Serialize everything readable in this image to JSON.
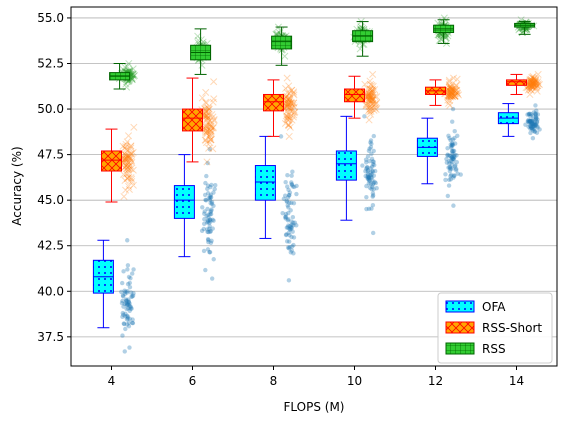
{
  "chart_data": {
    "type": "box",
    "title": "",
    "xlabel": "FLOPS (M)",
    "ylabel": "Accuracy (%)",
    "x_ticks": [
      4,
      6,
      8,
      10,
      12,
      14
    ],
    "y_ticks": [
      "37.5",
      "40.0",
      "42.5",
      "45.0",
      "47.5",
      "50.0",
      "52.5",
      "55.0"
    ],
    "xlim": [
      3,
      15
    ],
    "ylim": [
      35.9,
      55.6
    ],
    "grid": "horizontal",
    "legend_position": "lower-right",
    "series": [
      {
        "name": "OFA",
        "color": "#00ffff",
        "edge_color": "#0000ff",
        "hatch": "dots",
        "scatter_color": "#1f77b4",
        "boxes": [
          {
            "x": 3.8,
            "whisker_low": 38.0,
            "q1": 39.9,
            "median": 40.8,
            "q3": 41.7,
            "whisker_high": 42.8
          },
          {
            "x": 5.8,
            "whisker_low": 41.9,
            "q1": 44.0,
            "median": 45.0,
            "q3": 45.8,
            "whisker_high": 47.5
          },
          {
            "x": 7.8,
            "whisker_low": 42.9,
            "q1": 45.0,
            "median": 46.0,
            "q3": 46.9,
            "whisker_high": 48.5
          },
          {
            "x": 9.8,
            "whisker_low": 43.9,
            "q1": 46.1,
            "median": 47.0,
            "q3": 47.7,
            "whisker_high": 49.6
          },
          {
            "x": 11.8,
            "whisker_low": 45.9,
            "q1": 47.4,
            "median": 47.9,
            "q3": 48.4,
            "whisker_high": 49.5
          },
          {
            "x": 13.8,
            "whisker_low": 48.5,
            "q1": 49.2,
            "median": 49.5,
            "q3": 49.8,
            "whisker_high": 50.3
          }
        ],
        "scatter": [
          {
            "x": 4.4,
            "low": 36.7,
            "high": 42.8
          },
          {
            "x": 6.4,
            "low": 40.7,
            "high": 47.8
          },
          {
            "x": 8.4,
            "low": 40.6,
            "high": 48.5
          },
          {
            "x": 10.4,
            "low": 43.2,
            "high": 49.6
          },
          {
            "x": 12.4,
            "low": 44.7,
            "high": 50.0
          },
          {
            "x": 14.4,
            "low": 48.4,
            "high": 50.2
          }
        ]
      },
      {
        "name": "RSS-Short",
        "color": "#ffa500",
        "edge_color": "#ff0000",
        "hatch": "cross",
        "scatter_color": "#ff7f0e",
        "boxes": [
          {
            "x": 4.0,
            "whisker_low": 44.9,
            "q1": 46.6,
            "median": 47.2,
            "q3": 47.7,
            "whisker_high": 48.9
          },
          {
            "x": 6.0,
            "whisker_low": 47.1,
            "q1": 48.8,
            "median": 49.5,
            "q3": 50.0,
            "whisker_high": 51.7
          },
          {
            "x": 8.0,
            "whisker_low": 48.5,
            "q1": 49.9,
            "median": 50.4,
            "q3": 50.8,
            "whisker_high": 51.6
          },
          {
            "x": 10.0,
            "whisker_low": 49.5,
            "q1": 50.4,
            "median": 50.8,
            "q3": 51.1,
            "whisker_high": 51.8
          },
          {
            "x": 12.0,
            "whisker_low": 50.2,
            "q1": 50.8,
            "median": 51.0,
            "q3": 51.2,
            "whisker_high": 51.6
          },
          {
            "x": 14.0,
            "whisker_low": 50.8,
            "q1": 51.3,
            "median": 51.5,
            "q3": 51.6,
            "whisker_high": 51.9
          }
        ],
        "scatter": [
          {
            "x": 4.4,
            "low": 45.2,
            "high": 49.0
          },
          {
            "x": 6.4,
            "low": 47.1,
            "high": 51.5
          },
          {
            "x": 8.4,
            "low": 48.5,
            "high": 51.7
          },
          {
            "x": 10.4,
            "low": 49.4,
            "high": 51.9
          },
          {
            "x": 12.4,
            "low": 50.2,
            "high": 51.7
          },
          {
            "x": 14.4,
            "low": 50.8,
            "high": 51.9
          }
        ]
      },
      {
        "name": "RSS",
        "color": "#32cd32",
        "edge_color": "#006400",
        "hatch": "grid",
        "scatter_color": "#2ca02c",
        "boxes": [
          {
            "x": 4.2,
            "whisker_low": 51.1,
            "q1": 51.6,
            "median": 51.8,
            "q3": 52.0,
            "whisker_high": 52.5
          },
          {
            "x": 6.2,
            "whisker_low": 51.9,
            "q1": 52.7,
            "median": 53.1,
            "q3": 53.5,
            "whisker_high": 54.4
          },
          {
            "x": 8.2,
            "whisker_low": 52.4,
            "q1": 53.3,
            "median": 53.7,
            "q3": 54.0,
            "whisker_high": 54.5
          },
          {
            "x": 10.2,
            "whisker_low": 52.9,
            "q1": 53.7,
            "median": 54.0,
            "q3": 54.3,
            "whisker_high": 54.8
          },
          {
            "x": 12.2,
            "whisker_low": 53.6,
            "q1": 54.2,
            "median": 54.4,
            "q3": 54.6,
            "whisker_high": 54.9
          },
          {
            "x": 14.2,
            "whisker_low": 54.1,
            "q1": 54.5,
            "median": 54.6,
            "q3": 54.7,
            "whisker_high": 54.8
          }
        ],
        "scatter": [
          {
            "x": 4.4,
            "low": 51.2,
            "high": 52.5
          },
          {
            "x": 6.2,
            "low": 52.4,
            "high": 54.0
          },
          {
            "x": 8.2,
            "low": 52.9,
            "high": 54.5
          },
          {
            "x": 10.2,
            "low": 53.3,
            "high": 54.8
          },
          {
            "x": 12.2,
            "low": 53.6,
            "high": 55.0
          },
          {
            "x": 14.2,
            "low": 54.2,
            "high": 54.9
          }
        ]
      }
    ]
  }
}
